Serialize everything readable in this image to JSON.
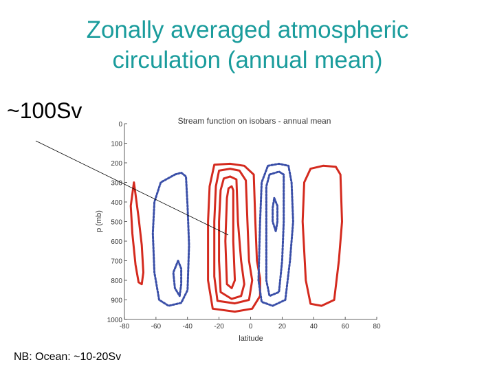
{
  "slide": {
    "title_line1": "Zonally averaged atmospheric",
    "title_line2": "circulation (annual mean)",
    "callout": "~100Sv",
    "footnote": "NB: Ocean: ~10-20Sv"
  },
  "colors": {
    "title": "#1a9c9c",
    "positive_contour": "#d42a1e",
    "negative_contour": "#3a4fa8"
  },
  "chart_data": {
    "type": "contour",
    "title": "Stream function on isobars - annual mean",
    "xlabel": "latitude",
    "ylabel": "p (mb)",
    "xlim": [
      -80,
      80
    ],
    "ylim": [
      0,
      1000
    ],
    "y_inverted": true,
    "xticks": [
      -80,
      -60,
      -40,
      -20,
      0,
      20,
      40,
      60,
      80
    ],
    "yticks": [
      0,
      100,
      200,
      300,
      400,
      500,
      600,
      700,
      800,
      900,
      1000
    ],
    "grid": false,
    "contours": [
      {
        "sign": "positive",
        "style": "solid",
        "points": [
          [
            -74,
            300
          ],
          [
            -73,
            360
          ],
          [
            -71,
            480
          ],
          [
            -69,
            620
          ],
          [
            -68,
            760
          ],
          [
            -69,
            820
          ],
          [
            -71,
            810
          ],
          [
            -73,
            720
          ],
          [
            -75,
            560
          ],
          [
            -76,
            420
          ]
        ]
      },
      {
        "sign": "negative",
        "style": "dashed",
        "points": [
          [
            -48,
            260
          ],
          [
            -44,
            250
          ],
          [
            -41,
            270
          ],
          [
            -40,
            420
          ],
          [
            -39,
            620
          ],
          [
            -40,
            850
          ],
          [
            -44,
            915
          ],
          [
            -52,
            930
          ],
          [
            -58,
            900
          ],
          [
            -61,
            760
          ],
          [
            -62,
            560
          ],
          [
            -61,
            400
          ],
          [
            -57,
            300
          ]
        ]
      },
      {
        "sign": "negative",
        "style": "dashed",
        "points": [
          [
            -46,
            700
          ],
          [
            -44,
            740
          ],
          [
            -44,
            820
          ],
          [
            -45,
            880
          ],
          [
            -48,
            840
          ],
          [
            -49,
            760
          ]
        ]
      },
      {
        "sign": "positive",
        "style": "solid",
        "points": [
          [
            -23,
            210
          ],
          [
            -13,
            205
          ],
          [
            -4,
            215
          ],
          [
            2,
            260
          ],
          [
            3,
            500
          ],
          [
            4,
            700
          ],
          [
            6,
            790
          ],
          [
            6,
            880
          ],
          [
            1,
            945
          ],
          [
            -10,
            960
          ],
          [
            -24,
            945
          ],
          [
            -27,
            800
          ],
          [
            -27,
            500
          ],
          [
            -26,
            320
          ]
        ]
      },
      {
        "sign": "positive",
        "style": "solid",
        "points": [
          [
            -20,
            240
          ],
          [
            -13,
            230
          ],
          [
            -7,
            240
          ],
          [
            -3,
            290
          ],
          [
            -2,
            500
          ],
          [
            -1,
            700
          ],
          [
            1,
            800
          ],
          [
            -1,
            900
          ],
          [
            -10,
            918
          ],
          [
            -21,
            905
          ],
          [
            -23,
            780
          ],
          [
            -23,
            500
          ],
          [
            -22,
            320
          ]
        ]
      },
      {
        "sign": "positive",
        "style": "solid",
        "points": [
          [
            -17,
            280
          ],
          [
            -13,
            270
          ],
          [
            -9,
            285
          ],
          [
            -8,
            500
          ],
          [
            -6,
            700
          ],
          [
            -4,
            820
          ],
          [
            -6,
            880
          ],
          [
            -12,
            895
          ],
          [
            -19,
            860
          ],
          [
            -20,
            700
          ],
          [
            -20,
            500
          ],
          [
            -19,
            340
          ]
        ]
      },
      {
        "sign": "positive",
        "style": "solid",
        "points": [
          [
            -14,
            330
          ],
          [
            -12,
            320
          ],
          [
            -11,
            340
          ],
          [
            -11,
            600
          ],
          [
            -10,
            800
          ],
          [
            -12,
            840
          ],
          [
            -15,
            820
          ],
          [
            -16,
            600
          ],
          [
            -15,
            380
          ]
        ]
      },
      {
        "sign": "negative",
        "style": "dashed",
        "points": [
          [
            11,
            215
          ],
          [
            18,
            205
          ],
          [
            24,
            215
          ],
          [
            26,
            300
          ],
          [
            27,
            500
          ],
          [
            25,
            700
          ],
          [
            22,
            900
          ],
          [
            14,
            930
          ],
          [
            7,
            910
          ],
          [
            5,
            800
          ],
          [
            6,
            500
          ],
          [
            7,
            300
          ]
        ]
      },
      {
        "sign": "negative",
        "style": "dashed",
        "points": [
          [
            12,
            260
          ],
          [
            18,
            245
          ],
          [
            21,
            260
          ],
          [
            21,
            500
          ],
          [
            20,
            700
          ],
          [
            18,
            860
          ],
          [
            12,
            880
          ],
          [
            10,
            800
          ],
          [
            10,
            500
          ],
          [
            10,
            320
          ]
        ]
      },
      {
        "sign": "negative",
        "style": "dashed",
        "points": [
          [
            15,
            380
          ],
          [
            17,
            420
          ],
          [
            17,
            500
          ],
          [
            16,
            550
          ],
          [
            14,
            500
          ],
          [
            14,
            430
          ]
        ]
      },
      {
        "sign": "positive",
        "style": "solid",
        "points": [
          [
            38,
            230
          ],
          [
            46,
            215
          ],
          [
            54,
            220
          ],
          [
            57,
            260
          ],
          [
            58,
            500
          ],
          [
            56,
            700
          ],
          [
            53,
            900
          ],
          [
            45,
            930
          ],
          [
            38,
            920
          ],
          [
            35,
            800
          ],
          [
            33,
            500
          ],
          [
            34,
            300
          ]
        ]
      }
    ]
  }
}
